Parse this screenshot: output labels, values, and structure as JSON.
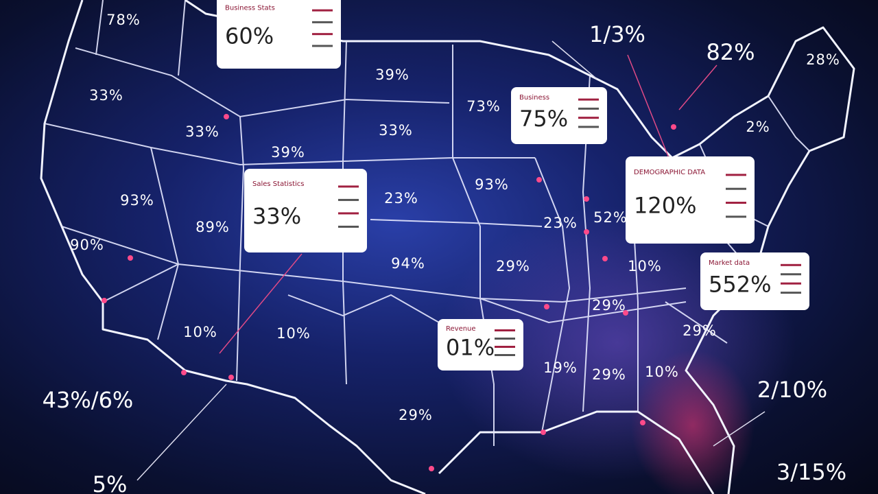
{
  "map_labels": [
    "78%",
    "33%",
    "33%",
    "39%",
    "93%",
    "89%",
    "90%",
    "39%",
    "73%",
    "33%",
    "93%",
    "23%",
    "23%",
    "52%",
    "94%",
    "29%",
    "29%",
    "10%",
    "10%",
    "10%",
    "19%",
    "29%",
    "10%",
    "29%",
    "29%",
    "2%",
    "28%"
  ],
  "outer_labels": [
    "1/3%",
    "82%",
    "43%/6%",
    "5%",
    "2/10%",
    "3/15%"
  ],
  "callouts": [
    {
      "title": "Business Stats",
      "value": "60%"
    },
    {
      "title": "Business",
      "value": "75%"
    },
    {
      "title": "Sales Statistics",
      "value": "33%"
    },
    {
      "title": "DEMOGRAPHIC DATA",
      "value": "120%"
    },
    {
      "title": "Market data",
      "value": "552%"
    },
    {
      "title": "Revenue",
      "value": "01%"
    }
  ]
}
